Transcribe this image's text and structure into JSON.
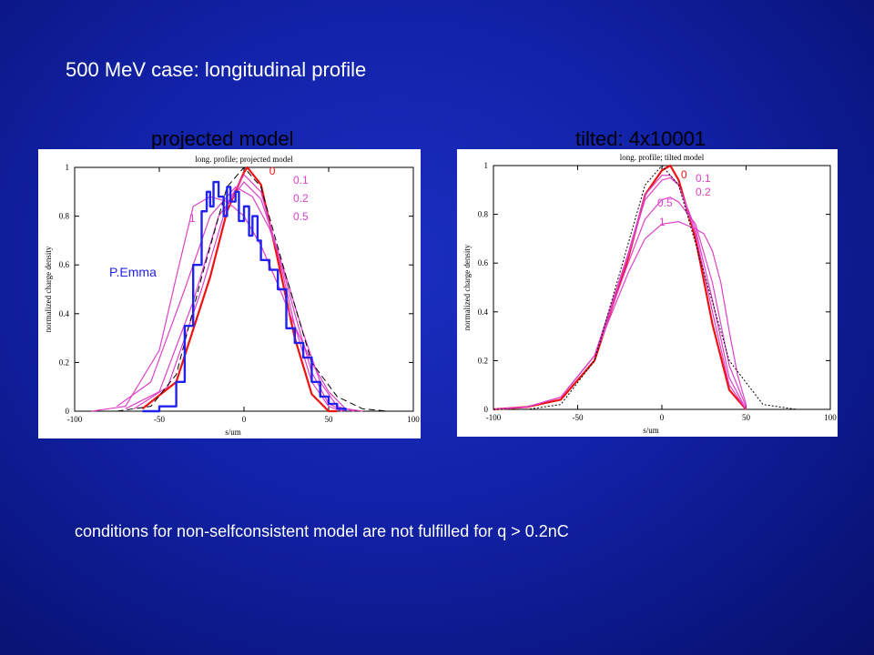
{
  "slide": {
    "title": "500 MeV case: longitudinal profile",
    "footer": "conditions for non-selfconsistent model are not fulfilled for q > 0.2nC"
  },
  "colors": {
    "background": "#1222a8",
    "measured": "#2222ee",
    "model0": "#ee1111",
    "models": "#e040c8",
    "reference": "#000000"
  },
  "chart_data": [
    {
      "type": "line",
      "panel_title": "projected model",
      "title": "long. profile; projected model",
      "xlabel": "s/um",
      "ylabel": "normalized charge density",
      "xlim": [
        -100,
        100
      ],
      "ylim": [
        0,
        1
      ],
      "xticks": [
        "-100",
        "-50",
        "0",
        "50",
        "100"
      ],
      "yticks": [
        "0",
        "0.2",
        "0.4",
        "0.6",
        "0.8",
        "1"
      ],
      "annotations": {
        "measured": "P.Emma"
      },
      "series": [
        {
          "name": "0",
          "x": [
            -60,
            -40,
            -20,
            -10,
            0,
            2,
            10,
            20,
            30,
            40,
            50,
            55
          ],
          "y": [
            0.01,
            0.12,
            0.55,
            0.82,
            0.98,
            1.0,
            0.93,
            0.62,
            0.3,
            0.07,
            0.0,
            0.0
          ]
        },
        {
          "name": "0.1",
          "x": [
            -65,
            -45,
            -25,
            -10,
            0,
            10,
            20,
            30,
            40,
            50,
            58
          ],
          "y": [
            0.01,
            0.1,
            0.5,
            0.85,
            0.97,
            0.9,
            0.65,
            0.35,
            0.12,
            0.02,
            0.0
          ]
        },
        {
          "name": "0.2",
          "x": [
            -70,
            -50,
            -30,
            -15,
            0,
            10,
            20,
            30,
            40,
            50,
            60
          ],
          "y": [
            0.01,
            0.08,
            0.45,
            0.8,
            0.94,
            0.87,
            0.66,
            0.4,
            0.16,
            0.03,
            0.0
          ]
        },
        {
          "name": "0.5",
          "x": [
            -75,
            -55,
            -35,
            -20,
            -5,
            5,
            15,
            25,
            35,
            45,
            55,
            65
          ],
          "y": [
            0.02,
            0.12,
            0.5,
            0.8,
            0.92,
            0.88,
            0.75,
            0.55,
            0.32,
            0.12,
            0.02,
            0.0
          ]
        },
        {
          "name": "1",
          "x": [
            -90,
            -70,
            -50,
            -40,
            -30,
            -20,
            -10,
            0,
            10,
            20,
            30,
            40,
            50,
            60,
            70
          ],
          "y": [
            0.0,
            0.02,
            0.25,
            0.55,
            0.84,
            0.88,
            0.86,
            0.8,
            0.68,
            0.52,
            0.35,
            0.2,
            0.08,
            0.01,
            0.0
          ]
        },
        {
          "name": "reference",
          "x": [
            -75,
            -55,
            -40,
            -25,
            -10,
            0,
            10,
            25,
            40,
            55,
            70,
            85
          ],
          "y": [
            0.0,
            0.02,
            0.15,
            0.55,
            0.92,
            1.0,
            0.92,
            0.55,
            0.2,
            0.06,
            0.01,
            0.0
          ]
        },
        {
          "name": "P.Emma",
          "x": [
            -60,
            -50,
            -40,
            -35,
            -30,
            -25,
            -22,
            -20,
            -18,
            -15,
            -12,
            -10,
            -8,
            -5,
            -3,
            0,
            3,
            5,
            8,
            10,
            15,
            20,
            25,
            30,
            35,
            40,
            45,
            50,
            55,
            60
          ],
          "y": [
            0.0,
            0.02,
            0.12,
            0.35,
            0.6,
            0.82,
            0.9,
            0.84,
            0.94,
            0.88,
            0.8,
            0.92,
            0.86,
            0.9,
            0.78,
            0.84,
            0.72,
            0.8,
            0.7,
            0.62,
            0.58,
            0.5,
            0.34,
            0.28,
            0.22,
            0.12,
            0.06,
            0.03,
            0.01,
            0.0
          ]
        }
      ]
    },
    {
      "type": "line",
      "panel_title": "tilted: 4x10001",
      "title": "long. profile; tilted model",
      "xlabel": "s/um",
      "ylabel": "normalized charge density",
      "xlim": [
        -100,
        100
      ],
      "ylim": [
        0,
        1
      ],
      "xticks": [
        "-100",
        "-50",
        "0",
        "50",
        "100"
      ],
      "yticks": [
        "0",
        "0.2",
        "0.4",
        "0.6",
        "0.8",
        "1"
      ],
      "series": [
        {
          "name": "0",
          "x": [
            -100,
            -80,
            -60,
            -40,
            -20,
            -10,
            0,
            5,
            10,
            20,
            30,
            40,
            50
          ],
          "y": [
            0.0,
            0.01,
            0.04,
            0.2,
            0.62,
            0.88,
            0.98,
            1.0,
            0.94,
            0.7,
            0.35,
            0.08,
            0.0
          ]
        },
        {
          "name": "0.1",
          "x": [
            -100,
            -80,
            -60,
            -40,
            -20,
            -10,
            0,
            5,
            10,
            20,
            30,
            40,
            50
          ],
          "y": [
            0.0,
            0.01,
            0.05,
            0.22,
            0.64,
            0.88,
            0.96,
            0.96,
            0.92,
            0.72,
            0.4,
            0.1,
            0.0
          ]
        },
        {
          "name": "0.2",
          "x": [
            -100,
            -80,
            -60,
            -40,
            -20,
            -10,
            0,
            5,
            10,
            20,
            30,
            40,
            50
          ],
          "y": [
            0.0,
            0.01,
            0.05,
            0.22,
            0.63,
            0.86,
            0.94,
            0.95,
            0.92,
            0.74,
            0.45,
            0.13,
            0.0
          ]
        },
        {
          "name": "0.5",
          "x": [
            -100,
            -80,
            -60,
            -40,
            -20,
            -10,
            0,
            5,
            10,
            20,
            30,
            40,
            50
          ],
          "y": [
            0.0,
            0.01,
            0.05,
            0.22,
            0.6,
            0.78,
            0.86,
            0.87,
            0.85,
            0.76,
            0.52,
            0.18,
            0.01
          ]
        },
        {
          "name": "1",
          "x": [
            -100,
            -80,
            -60,
            -40,
            -20,
            -10,
            0,
            10,
            20,
            25,
            30,
            35,
            40,
            45,
            50
          ],
          "y": [
            0.0,
            0.01,
            0.05,
            0.22,
            0.56,
            0.7,
            0.76,
            0.77,
            0.74,
            0.72,
            0.65,
            0.52,
            0.32,
            0.14,
            0.02
          ]
        },
        {
          "name": "reference",
          "x": [
            -100,
            -80,
            -60,
            -40,
            -20,
            -10,
            0,
            10,
            20,
            40,
            60,
            80,
            100
          ],
          "y": [
            0.0,
            0.0,
            0.02,
            0.2,
            0.68,
            0.92,
            1.0,
            0.92,
            0.68,
            0.2,
            0.02,
            0.0,
            0.0
          ]
        }
      ]
    }
  ]
}
